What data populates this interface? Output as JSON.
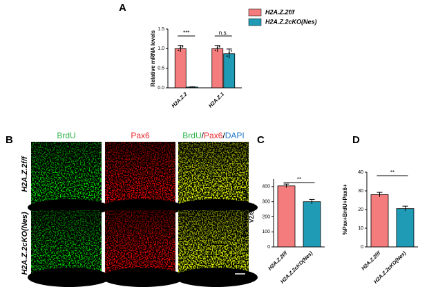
{
  "chart_data": [
    {
      "type": "bar",
      "panel": "A",
      "ylabel": [
        "Relative mRNA levels"
      ],
      "categories": [
        "H2A.Z.2",
        "H2A.Z.1"
      ],
      "series": [
        {
          "name": "H2A.Z.2f/f",
          "color": "#f47c7c",
          "values": [
            1.0,
            1.0
          ],
          "errors": [
            0.08,
            0.08
          ]
        },
        {
          "name": "H2A.Z.2cKO(Nes)",
          "color": "#1f9bb5",
          "values": [
            0.02,
            0.87
          ],
          "errors": [
            0.005,
            0.12
          ]
        }
      ],
      "ylim": [
        0,
        1.5
      ],
      "yticks": [
        {
          "value": 0,
          "label": "0.0"
        },
        0.5,
        {
          "value": 1,
          "label": "1.0"
        },
        1.5
      ],
      "annotations": [
        "***",
        "n.s."
      ]
    },
    {
      "type": "bar",
      "panel": "C",
      "ylabel": [
        "Pax6+per 0.1mm2",
        "VZ/SVZ"
      ],
      "categories": [
        "H2A.Z.2f/f",
        "H2A.Z.2cKO(Nes)"
      ],
      "series": [
        {
          "color": "#f47c7c",
          "colors": [
            "#f47c7c",
            "#1f9bb5"
          ],
          "values": [
            405,
            300
          ],
          "errors": [
            12,
            15
          ]
        }
      ],
      "ylim": [
        0,
        450
      ],
      "yticks": [
        0,
        100,
        200,
        300,
        400
      ],
      "annotations": [
        "**"
      ]
    },
    {
      "type": "bar",
      "panel": "D",
      "ylabel": [
        "%Pax+BrdU+Pax6+"
      ],
      "categories": [
        "H2A.Z.2f/f",
        "H2A.Z.2cKO(Nes)"
      ],
      "series": [
        {
          "color": "#f47c7c",
          "colors": [
            "#f47c7c",
            "#1f9bb5"
          ],
          "values": [
            28,
            20.5
          ],
          "errors": [
            1.2,
            1.3
          ]
        }
      ],
      "ylim": [
        0,
        40
      ],
      "yticks": [
        0,
        10,
        20,
        30,
        40
      ],
      "annotations": [
        "**"
      ]
    }
  ],
  "panel_b": {
    "panel": "B",
    "columns": [
      "BrdU",
      "Pax6"
    ],
    "merge": [
      "BrdU",
      "/",
      "Pax6",
      "/",
      "DAPI"
    ],
    "rows": [
      "H2A.Z.2f/f",
      "H2A.Z.2cKO(Nes)"
    ]
  }
}
